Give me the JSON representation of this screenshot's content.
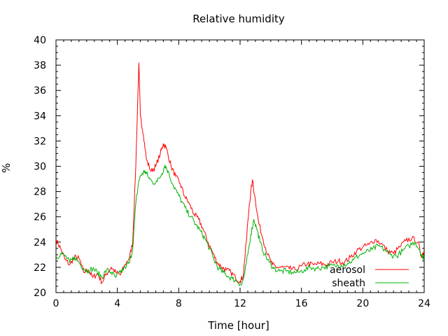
{
  "chart_data": {
    "type": "line",
    "title": "Relative humidity",
    "xlabel": "Time [hour]",
    "ylabel": "%",
    "xlim": [
      0,
      24
    ],
    "ylim": [
      20,
      40
    ],
    "xticks": [
      0,
      4,
      8,
      12,
      16,
      20,
      24
    ],
    "yticks": [
      20,
      22,
      24,
      26,
      28,
      30,
      32,
      34,
      36,
      38,
      40
    ],
    "grid": false,
    "legend_position": "bottom-right",
    "series": [
      {
        "name": "aerosol",
        "color": "#ff0000",
        "points": [
          [
            0.0,
            24.2
          ],
          [
            0.3,
            23.5
          ],
          [
            0.6,
            22.6
          ],
          [
            0.9,
            22.2
          ],
          [
            1.2,
            22.8
          ],
          [
            1.5,
            22.7
          ],
          [
            1.8,
            21.6
          ],
          [
            2.1,
            21.8
          ],
          [
            2.4,
            21.2
          ],
          [
            2.7,
            21.5
          ],
          [
            3.0,
            20.8
          ],
          [
            3.3,
            21.5
          ],
          [
            3.6,
            22.0
          ],
          [
            3.9,
            21.6
          ],
          [
            4.2,
            21.4
          ],
          [
            4.5,
            22.2
          ],
          [
            4.8,
            22.8
          ],
          [
            5.0,
            24.0
          ],
          [
            5.2,
            30.0
          ],
          [
            5.4,
            38.2
          ],
          [
            5.5,
            34.0
          ],
          [
            5.7,
            32.5
          ],
          [
            5.9,
            30.5
          ],
          [
            6.2,
            29.6
          ],
          [
            6.5,
            30.0
          ],
          [
            6.8,
            31.0
          ],
          [
            7.0,
            31.8
          ],
          [
            7.2,
            31.4
          ],
          [
            7.5,
            30.0
          ],
          [
            7.8,
            29.2
          ],
          [
            8.1,
            28.6
          ],
          [
            8.4,
            27.6
          ],
          [
            8.7,
            27.0
          ],
          [
            9.0,
            26.2
          ],
          [
            9.3,
            25.8
          ],
          [
            9.6,
            25.0
          ],
          [
            9.9,
            24.0
          ],
          [
            10.2,
            23.2
          ],
          [
            10.5,
            22.4
          ],
          [
            10.8,
            22.0
          ],
          [
            11.1,
            21.8
          ],
          [
            11.4,
            21.6
          ],
          [
            11.7,
            21.2
          ],
          [
            12.0,
            20.9
          ],
          [
            12.2,
            21.3
          ],
          [
            12.4,
            24.0
          ],
          [
            12.6,
            27.0
          ],
          [
            12.8,
            28.9
          ],
          [
            13.0,
            27.3
          ],
          [
            13.2,
            25.6
          ],
          [
            13.5,
            24.2
          ],
          [
            13.8,
            23.0
          ],
          [
            14.1,
            22.2
          ],
          [
            14.4,
            22.0
          ],
          [
            14.8,
            22.0
          ],
          [
            15.2,
            21.9
          ],
          [
            15.6,
            21.8
          ],
          [
            16.0,
            22.1
          ],
          [
            16.4,
            22.3
          ],
          [
            16.8,
            22.2
          ],
          [
            17.2,
            22.3
          ],
          [
            17.6,
            22.2
          ],
          [
            18.0,
            22.4
          ],
          [
            18.4,
            22.5
          ],
          [
            18.8,
            22.4
          ],
          [
            19.2,
            22.8
          ],
          [
            19.6,
            23.3
          ],
          [
            20.0,
            23.6
          ],
          [
            20.4,
            23.8
          ],
          [
            20.8,
            24.2
          ],
          [
            21.2,
            23.9
          ],
          [
            21.6,
            23.3
          ],
          [
            22.0,
            23.1
          ],
          [
            22.4,
            23.6
          ],
          [
            22.8,
            24.1
          ],
          [
            23.2,
            24.3
          ],
          [
            23.6,
            24.0
          ],
          [
            23.8,
            22.9
          ],
          [
            24.0,
            23.3
          ]
        ]
      },
      {
        "name": "sheath",
        "color": "#00b000",
        "points": [
          [
            0.0,
            22.7
          ],
          [
            0.3,
            23.1
          ],
          [
            0.6,
            22.9
          ],
          [
            0.9,
            22.4
          ],
          [
            1.2,
            22.8
          ],
          [
            1.5,
            22.4
          ],
          [
            1.8,
            21.9
          ],
          [
            2.1,
            21.7
          ],
          [
            2.4,
            21.9
          ],
          [
            2.7,
            21.6
          ],
          [
            3.0,
            21.2
          ],
          [
            3.3,
            21.8
          ],
          [
            3.6,
            21.6
          ],
          [
            3.9,
            21.2
          ],
          [
            4.2,
            21.6
          ],
          [
            4.5,
            22.0
          ],
          [
            4.8,
            22.4
          ],
          [
            5.0,
            23.5
          ],
          [
            5.2,
            27.0
          ],
          [
            5.4,
            28.9
          ],
          [
            5.6,
            29.4
          ],
          [
            5.8,
            29.6
          ],
          [
            6.0,
            29.2
          ],
          [
            6.3,
            28.7
          ],
          [
            6.6,
            28.8
          ],
          [
            6.9,
            29.4
          ],
          [
            7.1,
            30.1
          ],
          [
            7.3,
            29.6
          ],
          [
            7.6,
            28.6
          ],
          [
            7.9,
            27.9
          ],
          [
            8.2,
            27.2
          ],
          [
            8.5,
            26.5
          ],
          [
            8.8,
            26.0
          ],
          [
            9.1,
            25.4
          ],
          [
            9.4,
            24.9
          ],
          [
            9.7,
            24.3
          ],
          [
            10.0,
            23.5
          ],
          [
            10.3,
            22.6
          ],
          [
            10.6,
            21.9
          ],
          [
            10.9,
            21.6
          ],
          [
            11.2,
            21.3
          ],
          [
            11.5,
            21.1
          ],
          [
            11.8,
            20.9
          ],
          [
            12.1,
            20.6
          ],
          [
            12.3,
            21.5
          ],
          [
            12.5,
            23.0
          ],
          [
            12.7,
            24.6
          ],
          [
            12.9,
            25.8
          ],
          [
            13.1,
            25.0
          ],
          [
            13.3,
            24.0
          ],
          [
            13.6,
            23.0
          ],
          [
            13.9,
            22.4
          ],
          [
            14.2,
            21.9
          ],
          [
            14.6,
            21.7
          ],
          [
            15.0,
            21.7
          ],
          [
            15.4,
            21.6
          ],
          [
            15.8,
            21.6
          ],
          [
            16.2,
            21.8
          ],
          [
            16.6,
            22.0
          ],
          [
            17.0,
            21.9
          ],
          [
            17.4,
            22.0
          ],
          [
            17.8,
            22.1
          ],
          [
            18.2,
            22.1
          ],
          [
            18.6,
            22.2
          ],
          [
            19.0,
            22.3
          ],
          [
            19.4,
            22.6
          ],
          [
            19.8,
            23.0
          ],
          [
            20.2,
            23.2
          ],
          [
            20.6,
            23.4
          ],
          [
            21.0,
            23.7
          ],
          [
            21.4,
            23.4
          ],
          [
            21.8,
            23.0
          ],
          [
            22.2,
            22.9
          ],
          [
            22.6,
            23.3
          ],
          [
            23.0,
            23.7
          ],
          [
            23.4,
            24.0
          ],
          [
            23.7,
            23.4
          ],
          [
            23.9,
            22.7
          ],
          [
            24.0,
            23.0
          ]
        ]
      }
    ]
  }
}
